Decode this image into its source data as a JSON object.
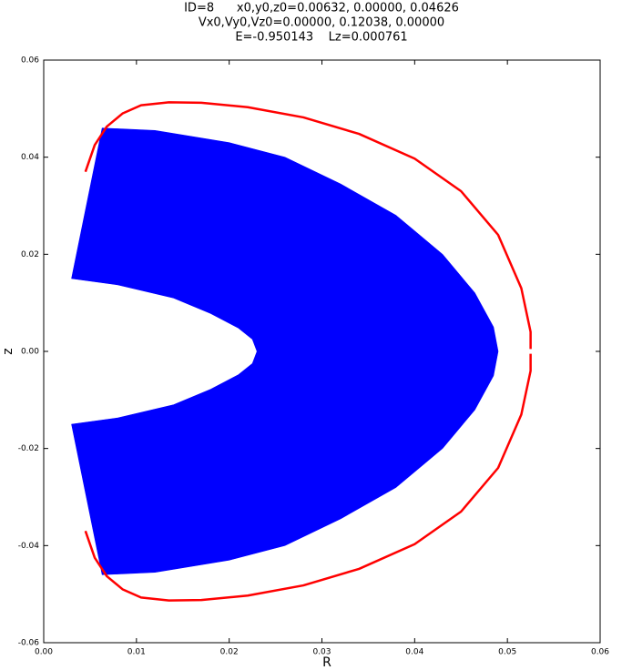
{
  "chart_data": {
    "type": "line",
    "title": [
      "ID=8      x0,y0,z0=0.00632, 0.00000, 0.04626",
      "Vx0,Vy0,Vz0=0.00000, 0.12038, 0.00000",
      "E=-0.950143    Lz=0.000761"
    ],
    "xlabel": "R",
    "ylabel": "z",
    "xlim": [
      0,
      0.06
    ],
    "ylim": [
      -0.06,
      0.06
    ],
    "xticks": [
      {
        "value": 0,
        "label": "0.00"
      },
      0.01,
      0.02,
      0.03,
      0.04,
      0.05,
      0.06
    ],
    "yticks": [
      -0.06,
      -0.04,
      -0.02,
      {
        "value": 0,
        "label": "0.00"
      },
      0.02,
      0.04,
      0.06
    ],
    "grid": false,
    "series": [
      {
        "color": "#0000ff",
        "fill": true,
        "x": [
          0.0063,
          0.012,
          0.02,
          0.026,
          0.032,
          0.038,
          0.043,
          0.0465,
          0.0485,
          0.049,
          0.0485,
          0.0465,
          0.043,
          0.038,
          0.032,
          0.026,
          0.02,
          0.012,
          0.0063,
          0.003,
          0.008,
          0.014,
          0.018,
          0.021,
          0.0225,
          0.023,
          0.0225,
          0.021,
          0.018,
          0.014,
          0.008,
          0.003
        ],
        "values": [
          0.046,
          0.0455,
          0.043,
          0.04,
          0.0345,
          0.028,
          0.02,
          0.012,
          0.005,
          0.0,
          -0.005,
          -0.012,
          -0.02,
          -0.028,
          -0.0345,
          -0.04,
          -0.043,
          -0.0455,
          -0.046,
          -0.015,
          -0.0137,
          -0.011,
          -0.0078,
          -0.0048,
          -0.0025,
          0.0,
          0.0025,
          0.0048,
          0.0078,
          0.011,
          0.0137,
          0.015
        ]
      },
      {
        "color": "#ff0000",
        "fill": false,
        "x": [
          0.0045,
          0.0055,
          0.0068,
          0.0085,
          0.0105,
          0.0135,
          0.017,
          0.022,
          0.028,
          0.034,
          0.04,
          0.045,
          0.049,
          0.0515,
          0.0525,
          0.0525,
          null,
          0.0525,
          0.0525,
          0.0515,
          0.049,
          0.045,
          0.04,
          0.034,
          0.028,
          0.022,
          0.017,
          0.0135,
          0.0105,
          0.0085,
          0.0068,
          0.0055,
          0.0045
        ],
        "values": [
          0.037,
          0.0425,
          0.0463,
          0.049,
          0.0507,
          0.0513,
          0.0512,
          0.0503,
          0.0482,
          0.0448,
          0.0397,
          0.033,
          0.024,
          0.013,
          0.004,
          0.0005,
          null,
          -0.0005,
          -0.004,
          -0.013,
          -0.024,
          -0.033,
          -0.0397,
          -0.0448,
          -0.0482,
          -0.0503,
          -0.0512,
          -0.0513,
          -0.0507,
          -0.049,
          -0.0463,
          -0.0425,
          -0.037
        ]
      }
    ]
  }
}
